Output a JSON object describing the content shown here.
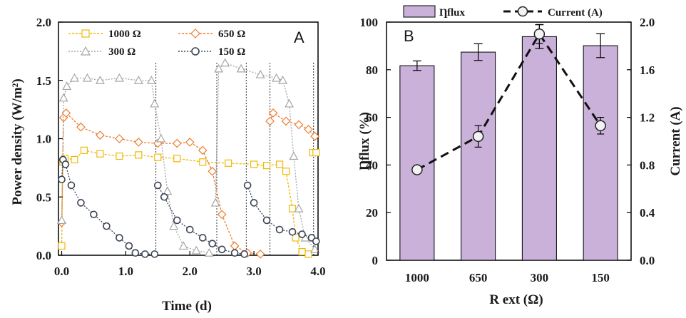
{
  "chart_data": [
    {
      "type": "scatter",
      "panel_label": "A",
      "xlabel": "Time (d)",
      "ylabel": "Power density (W/m²)",
      "xlim": [
        -0.05,
        4.0
      ],
      "ylim": [
        0.0,
        2.0
      ],
      "x_ticks": [
        "0.0",
        "1.0",
        "2.0",
        "3.0",
        "4.0"
      ],
      "y_ticks": [
        "0.0",
        "0.5",
        "1.0",
        "1.5",
        "2.0"
      ],
      "x_tick_values": [
        0,
        1,
        2,
        3,
        4
      ],
      "y_tick_values": [
        0,
        0.5,
        1.0,
        1.5,
        2.0
      ],
      "legend_position": "top",
      "series": [
        {
          "name": "1000 Ω",
          "marker": "square",
          "color": "#f2b705",
          "segments": [
            [
              [
                0.0,
                0.08
              ],
              [
                0.02,
                0.8
              ],
              [
                0.05,
                0.83
              ],
              [
                0.2,
                0.82
              ],
              [
                0.35,
                0.9
              ],
              [
                0.6,
                0.87
              ],
              [
                0.9,
                0.85
              ],
              [
                1.2,
                0.86
              ],
              [
                1.5,
                0.84
              ],
              [
                1.8,
                0.83
              ],
              [
                2.2,
                0.8
              ],
              [
                2.6,
                0.79
              ],
              [
                3.0,
                0.78
              ],
              [
                3.2,
                0.77
              ],
              [
                3.4,
                0.78
              ],
              [
                3.5,
                0.72
              ],
              [
                3.6,
                0.4
              ],
              [
                3.65,
                0.15
              ],
              [
                3.75,
                0.03
              ],
              [
                3.85,
                0.01
              ]
            ],
            [
              [
                3.92,
                0.88
              ],
              [
                3.97,
                0.88
              ]
            ]
          ]
        },
        {
          "name": "650 Ω",
          "marker": "diamond",
          "color": "#ed7d31",
          "segments": [
            [
              [
                0.0,
                0.28
              ],
              [
                0.03,
                1.18
              ],
              [
                0.07,
                1.22
              ],
              [
                0.3,
                1.1
              ],
              [
                0.6,
                1.03
              ],
              [
                0.9,
                1.0
              ],
              [
                1.2,
                0.97
              ],
              [
                1.5,
                0.96
              ],
              [
                1.8,
                0.96
              ],
              [
                2.0,
                0.97
              ],
              [
                2.2,
                0.9
              ],
              [
                2.35,
                0.72
              ],
              [
                2.5,
                0.35
              ],
              [
                2.7,
                0.08
              ],
              [
                2.9,
                0.02
              ],
              [
                3.1,
                0.01
              ]
            ],
            [
              [
                3.25,
                1.15
              ],
              [
                3.3,
                1.22
              ],
              [
                3.5,
                1.15
              ],
              [
                3.7,
                1.12
              ],
              [
                3.85,
                1.08
              ],
              [
                3.95,
                1.02
              ]
            ]
          ]
        },
        {
          "name": "300 Ω",
          "marker": "triangle",
          "color": "#a6a6a6",
          "segments": [
            [
              [
                0.0,
                0.3
              ],
              [
                0.03,
                1.35
              ],
              [
                0.08,
                1.45
              ],
              [
                0.2,
                1.52
              ],
              [
                0.4,
                1.52
              ],
              [
                0.6,
                1.5
              ],
              [
                0.9,
                1.52
              ],
              [
                1.2,
                1.5
              ],
              [
                1.4,
                1.5
              ],
              [
                1.45,
                1.3
              ],
              [
                1.55,
                1.0
              ],
              [
                1.65,
                0.55
              ],
              [
                1.75,
                0.25
              ],
              [
                1.9,
                0.08
              ],
              [
                2.1,
                0.04
              ],
              [
                2.3,
                0.02
              ]
            ],
            [
              [
                2.4,
                0.45
              ],
              [
                2.45,
                1.6
              ],
              [
                2.55,
                1.65
              ],
              [
                2.8,
                1.6
              ],
              [
                3.1,
                1.55
              ],
              [
                3.35,
                1.52
              ],
              [
                3.45,
                1.5
              ],
              [
                3.55,
                1.3
              ],
              [
                3.62,
                0.85
              ],
              [
                3.7,
                0.4
              ],
              [
                3.8,
                0.15
              ],
              [
                3.95,
                0.05
              ]
            ]
          ]
        },
        {
          "name": "150 Ω",
          "marker": "circle",
          "color": "#3b4454",
          "segments": [
            [
              [
                0.0,
                0.65
              ],
              [
                0.02,
                0.82
              ],
              [
                0.06,
                0.78
              ],
              [
                0.15,
                0.6
              ],
              [
                0.3,
                0.45
              ],
              [
                0.5,
                0.35
              ],
              [
                0.7,
                0.25
              ],
              [
                0.9,
                0.15
              ],
              [
                1.05,
                0.08
              ],
              [
                1.15,
                0.02
              ],
              [
                1.3,
                0.01
              ],
              [
                1.45,
                0.01
              ]
            ],
            [
              [
                1.5,
                0.6
              ],
              [
                1.6,
                0.5
              ],
              [
                1.8,
                0.3
              ],
              [
                2.0,
                0.22
              ],
              [
                2.2,
                0.15
              ],
              [
                2.35,
                0.1
              ],
              [
                2.5,
                0.05
              ],
              [
                2.7,
                0.02
              ],
              [
                2.85,
                0.01
              ]
            ],
            [
              [
                2.9,
                0.6
              ],
              [
                3.0,
                0.45
              ],
              [
                3.2,
                0.3
              ],
              [
                3.4,
                0.22
              ],
              [
                3.6,
                0.2
              ],
              [
                3.75,
                0.18
              ],
              [
                3.9,
                0.15
              ],
              [
                3.97,
                0.12
              ]
            ]
          ]
        }
      ],
      "switch_lines_x": [
        1.47,
        2.42,
        2.88,
        3.25,
        3.93
      ]
    },
    {
      "type": "bar",
      "panel_label": "B",
      "categories": [
        "1000",
        "650",
        "300",
        "150"
      ],
      "xlabel": "R ext (Ω)",
      "ylabel": "Ƞflux (%)",
      "y2label": "Current (A)",
      "ylim": [
        0,
        100
      ],
      "y2lim": [
        0.0,
        2.0
      ],
      "y_ticks": [
        "0",
        "20",
        "40",
        "60",
        "80",
        "100"
      ],
      "y2_ticks": [
        "0.0",
        "0.4",
        "0.8",
        "1.2",
        "1.6",
        "2.0"
      ],
      "legend_position": "top",
      "series": [
        {
          "name": "Ƞflux",
          "axis": "left",
          "kind": "bar",
          "color": "#c9b1d9",
          "values": [
            81.7,
            87.4,
            93.9,
            90.1
          ],
          "errors": [
            2.0,
            3.5,
            5.0,
            5.0
          ]
        },
        {
          "name": "Current (A)",
          "axis": "right",
          "kind": "line",
          "line_style": "dashed",
          "marker": "circle",
          "values": [
            0.76,
            1.04,
            1.9,
            1.13
          ],
          "errors": [
            0.0,
            0.09,
            0.08,
            0.07
          ]
        }
      ]
    }
  ]
}
